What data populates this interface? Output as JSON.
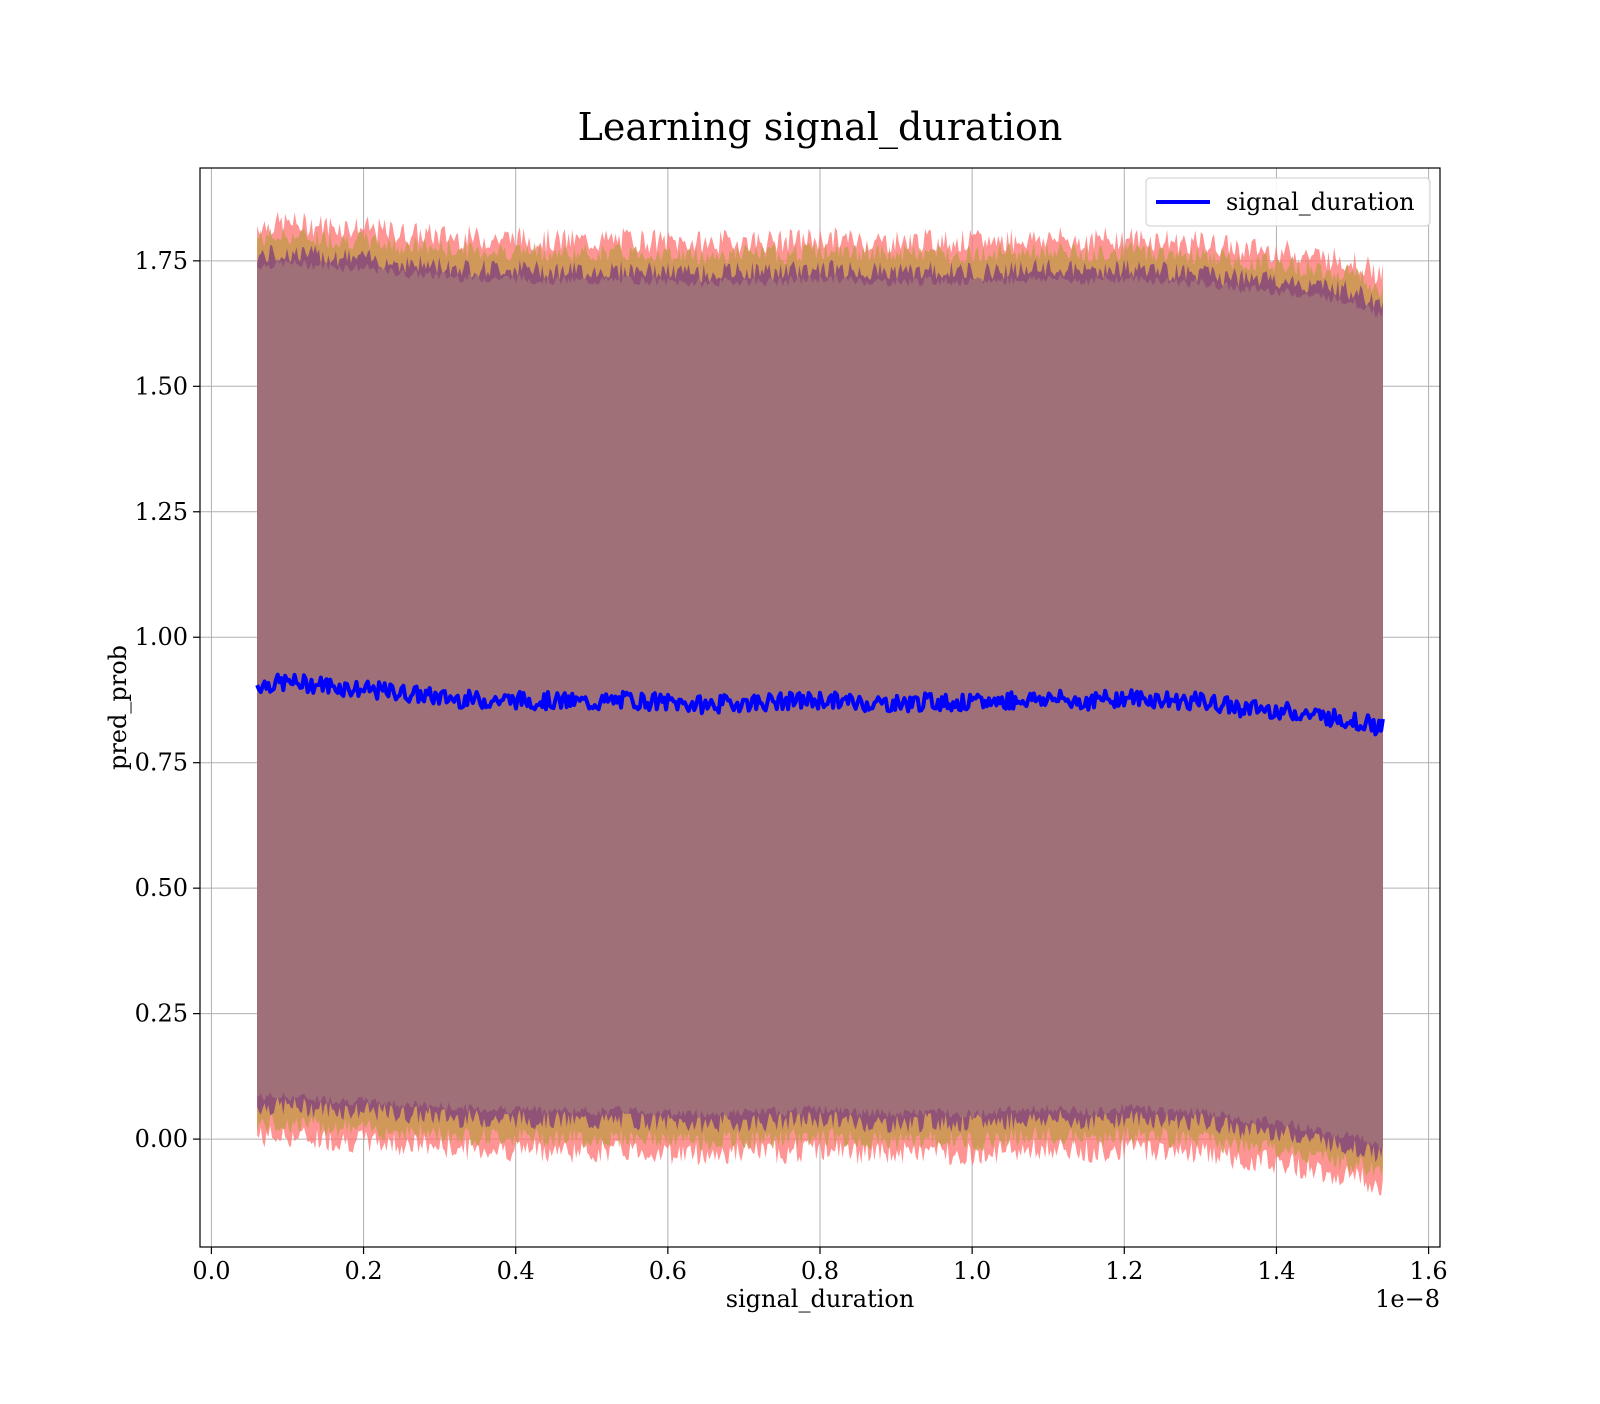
{
  "chart_data": {
    "type": "line",
    "title": "Learning signal_duration",
    "xlabel": "signal_duration",
    "ylabel": "pred_prob",
    "x_offset_label": "1e−8",
    "xlim": [
      -0.015,
      1.615
    ],
    "ylim": [
      -0.215,
      1.935
    ],
    "xticks": [
      0.0,
      0.2,
      0.4,
      0.6,
      0.8,
      1.0,
      1.2,
      1.4,
      1.6
    ],
    "xtick_labels": [
      "0.0",
      "0.2",
      "0.4",
      "0.6",
      "0.8",
      "1.0",
      "1.2",
      "1.4",
      "1.6"
    ],
    "yticks": [
      0.0,
      0.25,
      0.5,
      0.75,
      1.0,
      1.25,
      1.5,
      1.75
    ],
    "ytick_labels": [
      "0.00",
      "0.25",
      "0.50",
      "0.75",
      "1.00",
      "1.25",
      "1.50",
      "1.75"
    ],
    "grid": true,
    "legend": {
      "position": "top-right",
      "entries": [
        "signal_duration"
      ]
    },
    "colors": {
      "line": "#0000ff",
      "band_fill": "#a07078",
      "band_outer": "#ff7070",
      "band_mid": "#c89a50",
      "band_inner": "#8a4a7a",
      "grid": "#b0b0b0"
    },
    "series": [
      {
        "name": "signal_duration",
        "x": [
          0.06,
          0.1,
          0.15,
          0.2,
          0.25,
          0.3,
          0.35,
          0.4,
          0.45,
          0.5,
          0.55,
          0.6,
          0.65,
          0.7,
          0.75,
          0.8,
          0.85,
          0.9,
          0.95,
          1.0,
          1.05,
          1.1,
          1.15,
          1.2,
          1.25,
          1.3,
          1.35,
          1.4,
          1.45,
          1.5,
          1.54
        ],
        "y": [
          0.905,
          0.91,
          0.905,
          0.895,
          0.89,
          0.88,
          0.875,
          0.875,
          0.873,
          0.87,
          0.875,
          0.87,
          0.865,
          0.87,
          0.872,
          0.875,
          0.87,
          0.868,
          0.872,
          0.868,
          0.875,
          0.878,
          0.872,
          0.88,
          0.875,
          0.872,
          0.86,
          0.855,
          0.845,
          0.835,
          0.82
        ],
        "upper": [
          1.79,
          1.795,
          1.79,
          1.785,
          1.775,
          1.77,
          1.765,
          1.765,
          1.76,
          1.76,
          1.762,
          1.758,
          1.755,
          1.76,
          1.758,
          1.765,
          1.76,
          1.758,
          1.76,
          1.758,
          1.762,
          1.765,
          1.76,
          1.765,
          1.76,
          1.755,
          1.745,
          1.74,
          1.73,
          1.72,
          1.69
        ],
        "lower": [
          0.035,
          0.035,
          0.03,
          0.025,
          0.02,
          0.015,
          0.01,
          0.01,
          0.008,
          0.005,
          0.008,
          0.003,
          0.0,
          0.003,
          0.005,
          0.01,
          0.003,
          0.0,
          0.005,
          0.0,
          0.008,
          0.01,
          0.005,
          0.012,
          0.008,
          0.005,
          -0.01,
          -0.015,
          -0.03,
          -0.045,
          -0.06
        ]
      }
    ]
  }
}
